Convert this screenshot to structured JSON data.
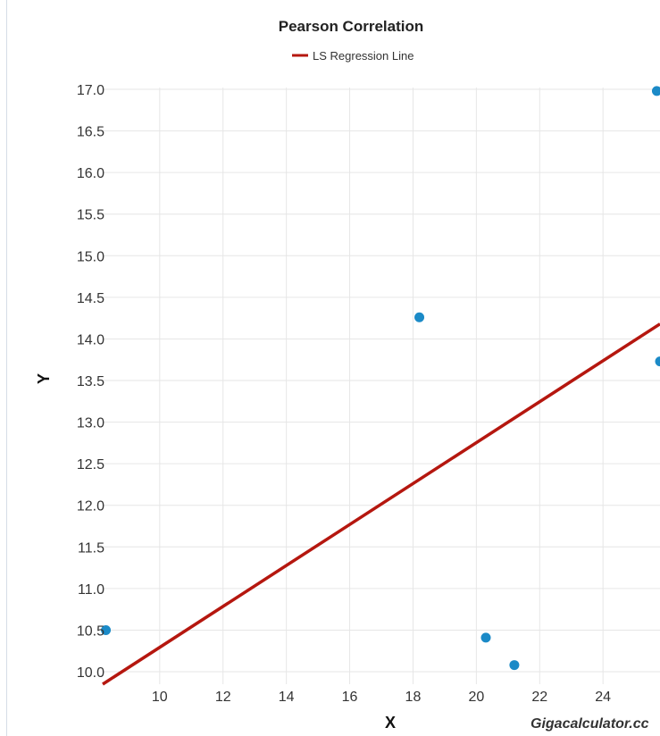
{
  "chart_data": {
    "type": "scatter",
    "title": "Pearson Correlation",
    "legend": {
      "entries": [
        "LS Regression Line"
      ],
      "position": "top-center"
    },
    "xlabel": "X",
    "ylabel": "Y",
    "xlim": [
      8.2,
      25.8
    ],
    "ylim": [
      9.85,
      17.0
    ],
    "x_ticks": [
      10,
      12,
      14,
      16,
      18,
      20,
      22,
      24
    ],
    "x_tick_labels": [
      "10",
      "12",
      "14",
      "16",
      "18",
      "20",
      "22",
      "24"
    ],
    "y_ticks": [
      10.0,
      10.5,
      11.0,
      11.5,
      12.0,
      12.5,
      13.0,
      13.5,
      14.0,
      14.5,
      15.0,
      15.5,
      16.0,
      16.5,
      17.0
    ],
    "y_tick_labels": [
      "10.0",
      "10.5",
      "11.0",
      "11.5",
      "12.0",
      "12.5",
      "13.0",
      "13.5",
      "14.0",
      "14.5",
      "15.0",
      "15.5",
      "16.0",
      "16.5",
      "17.0"
    ],
    "grid": true,
    "series": [
      {
        "kind": "points",
        "color": "#1b8ac7",
        "points": [
          {
            "x": 8.3,
            "y": 10.5
          },
          {
            "x": 18.2,
            "y": 14.26
          },
          {
            "x": 20.3,
            "y": 10.41
          },
          {
            "x": 21.2,
            "y": 10.08
          },
          {
            "x": 25.7,
            "y": 16.98
          },
          {
            "x": 25.8,
            "y": 13.73
          }
        ]
      },
      {
        "kind": "line",
        "name": "LS Regression Line",
        "color": "#b5170f",
        "points": [
          {
            "x": 8.2,
            "y": 9.85
          },
          {
            "x": 25.8,
            "y": 14.18
          }
        ]
      }
    ],
    "credit": "Gigacalculator.cc"
  }
}
